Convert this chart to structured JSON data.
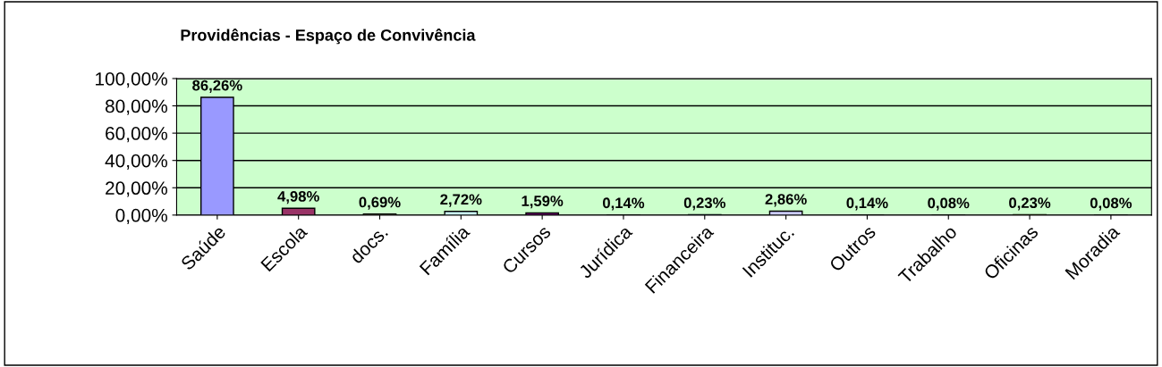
{
  "chart_data": {
    "type": "bar",
    "title": "Providências - Espaço de Convivência",
    "categories": [
      "Saúde",
      "Escola",
      "docs.",
      "Família",
      "Cursos",
      "Jurídica",
      "Financeira",
      "Instituc.",
      "Outros",
      "Trabalho",
      "Oficinas",
      "Moradia"
    ],
    "values": [
      86.26,
      4.98,
      0.69,
      2.72,
      1.59,
      0.14,
      0.23,
      2.86,
      0.14,
      0.08,
      0.23,
      0.08
    ],
    "colors": [
      "#9999ff",
      "#993366",
      "#ffffcc",
      "#ccffff",
      "#660066",
      "#ff8080",
      "#0066cc",
      "#ccccff",
      "#000080",
      "#ff00ff",
      "#ffff00",
      "#00ffff"
    ],
    "value_labels": [
      "86,26%",
      "4,98%",
      "0,69%",
      "2,72%",
      "1,59%",
      "0,14%",
      "0,23%",
      "2,86%",
      "0,14%",
      "0,08%",
      "0,23%",
      "0,08%"
    ],
    "ylim": [
      0,
      100
    ],
    "yticks": [
      {
        "value": 0,
        "label": "0,00%"
      },
      {
        "value": 20,
        "label": "20,00%"
      },
      {
        "value": 40,
        "label": "40,00%"
      },
      {
        "value": 60,
        "label": "60,00%"
      },
      {
        "value": 80,
        "label": "80,00%"
      },
      {
        "value": 100,
        "label": "100,00%"
      }
    ],
    "grid": "y",
    "legend": false
  }
}
